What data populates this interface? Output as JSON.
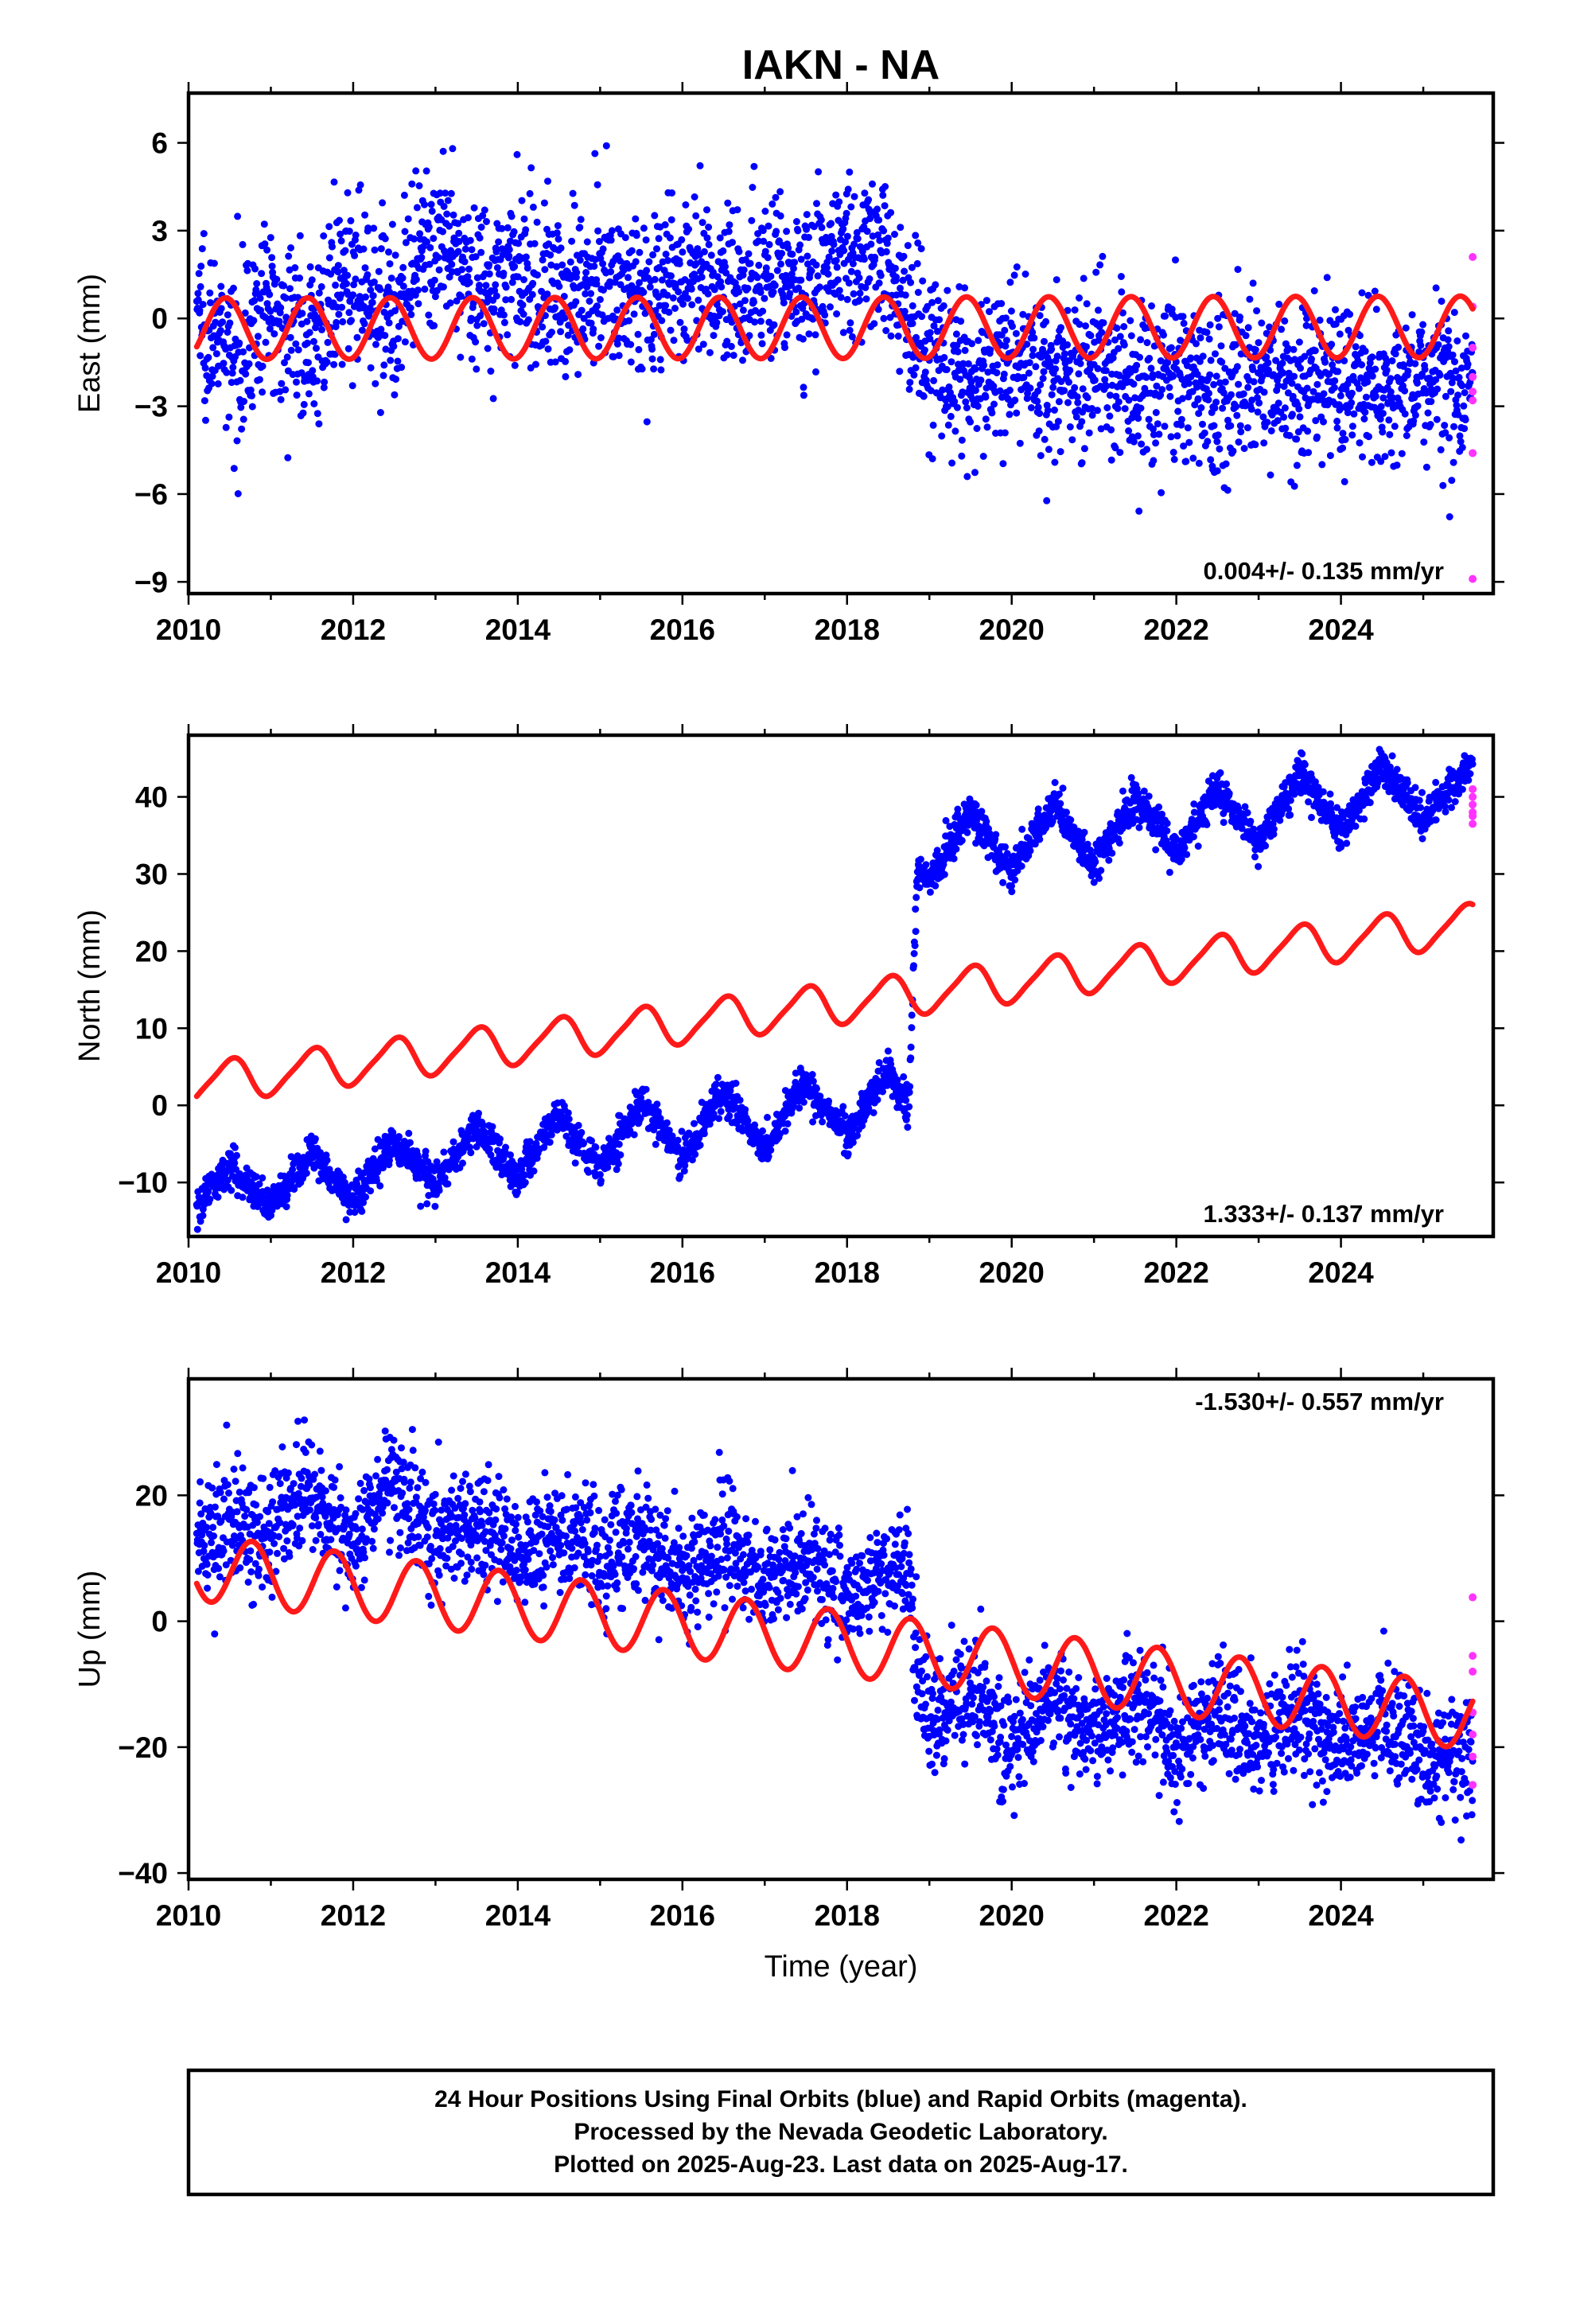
{
  "colors": {
    "final_orbits": "#0000ff",
    "rapid_orbits": "#ff33ff",
    "model_fit": "#ff1a1a"
  },
  "chart_data": [
    {
      "type": "scatter",
      "title": "IAKN - NA",
      "ylabel": "East (mm)",
      "xlabel": "",
      "xlim": [
        2010.0,
        2025.85
      ],
      "ylim": [
        -9.4,
        7.7
      ],
      "xticks": [
        "2010",
        "2012",
        "2014",
        "2016",
        "2018",
        "2020",
        "2022",
        "2024"
      ],
      "yticks": [
        "6",
        "3",
        "0",
        "−3",
        "−6",
        "−9"
      ],
      "annotation": "0.004+/- 0.135 mm/yr",
      "series": [
        {
          "name": "Final Orbits",
          "kind": "scatter-band",
          "x": [
            2010.1,
            2010.5,
            2011.0,
            2011.5,
            2012.0,
            2012.5,
            2013.0,
            2013.5,
            2014.0,
            2014.5,
            2015.0,
            2015.5,
            2016.0,
            2016.5,
            2017.0,
            2017.5,
            2018.0,
            2018.5,
            2018.8,
            2019.0,
            2019.5,
            2020.0,
            2020.5,
            2021.0,
            2021.5,
            2022.0,
            2022.5,
            2023.0,
            2023.5,
            2024.0,
            2024.5,
            2025.0,
            2025.6
          ],
          "y": [
            0.6,
            -1.5,
            0.5,
            -0.8,
            1.6,
            0.2,
            2.6,
            1.2,
            1.5,
            0.8,
            1.6,
            0.7,
            1.3,
            0.9,
            1.6,
            1.2,
            2.5,
            1.8,
            0.0,
            -1.2,
            -2.4,
            -1.3,
            -2.2,
            -1.3,
            -2.4,
            -1.6,
            -2.8,
            -2.0,
            -2.6,
            -1.8,
            -2.8,
            -2.1,
            -2.6
          ],
          "spread": 1.4
        },
        {
          "name": "Rapid Orbits",
          "x": [
            2025.6,
            2025.6,
            2025.6,
            2025.6,
            2025.6,
            2025.6,
            2025.6,
            2025.6
          ],
          "y": [
            2.1,
            0.4,
            -1.0,
            -2.0,
            -2.5,
            -2.8,
            -4.6,
            -8.9
          ]
        },
        {
          "name": "Model",
          "kind": "fit",
          "offset_before": -0.35,
          "offset_after": -0.35,
          "break": 2018.75,
          "rate": 0.004,
          "annual_amp": 1.05,
          "annual_phase": 0.2,
          "semiannual_amp": 0.0,
          "semiannual_phase": 0.0
        }
      ]
    },
    {
      "type": "scatter",
      "title": "",
      "ylabel": "North (mm)",
      "xlabel": "",
      "xlim": [
        2010.0,
        2025.85
      ],
      "ylim": [
        -17.0,
        48.0
      ],
      "xticks": [
        "2010",
        "2012",
        "2014",
        "2016",
        "2018",
        "2020",
        "2022",
        "2024"
      ],
      "yticks": [
        "40",
        "30",
        "20",
        "10",
        "0",
        "−10"
      ],
      "annotation": "1.333+/- 0.137 mm/yr",
      "series": [
        {
          "name": "Final Orbits",
          "kind": "scatter-band",
          "x": [
            2010.1,
            2010.5,
            2011.0,
            2011.5,
            2012.0,
            2012.5,
            2013.0,
            2013.5,
            2014.0,
            2014.5,
            2015.0,
            2015.5,
            2016.0,
            2016.5,
            2017.0,
            2017.5,
            2018.0,
            2018.5,
            2018.75,
            2018.85,
            2019.0,
            2019.5,
            2020.0,
            2020.5,
            2021.0,
            2021.5,
            2022.0,
            2022.5,
            2023.0,
            2023.5,
            2024.0,
            2024.5,
            2025.0,
            2025.6
          ],
          "y": [
            -13.0,
            -7.5,
            -13.0,
            -6.0,
            -12.5,
            -4.5,
            -10.5,
            -2.5,
            -9.5,
            -1.0,
            -8.5,
            0.5,
            -7.0,
            2.0,
            -5.5,
            3.0,
            -4.0,
            4.5,
            0.0,
            30.0,
            29.5,
            38.0,
            30.5,
            39.0,
            31.0,
            40.0,
            32.5,
            41.5,
            34.0,
            43.0,
            35.5,
            44.0,
            37.0,
            44.5
          ],
          "spread": 1.2
        },
        {
          "name": "Rapid Orbits",
          "x": [
            2025.6,
            2025.6,
            2025.6,
            2025.6,
            2025.6,
            2025.6
          ],
          "y": [
            41.0,
            40.0,
            39.0,
            38.0,
            37.5,
            36.5
          ]
        },
        {
          "name": "Model",
          "kind": "fit",
          "offset_before": 2.8,
          "offset_after": 2.8,
          "break": 2018.75,
          "rate": 1.333,
          "annual_amp": 2.6,
          "annual_phase": 0.25,
          "semiannual_amp": 0.5,
          "semiannual_phase": 0.0
        }
      ]
    },
    {
      "type": "scatter",
      "title": "",
      "ylabel": "Up (mm)",
      "xlabel": "Time (year)",
      "xlim": [
        2010.0,
        2025.85
      ],
      "ylim": [
        -41.0,
        38.5
      ],
      "xticks": [
        "2010",
        "2012",
        "2014",
        "2016",
        "2018",
        "2020",
        "2022",
        "2024"
      ],
      "yticks": [
        "20",
        "0",
        "−20",
        "−40"
      ],
      "annotation": "-1.530+/- 0.557 mm/yr",
      "series": [
        {
          "name": "Final Orbits",
          "kind": "scatter-band",
          "x": [
            2010.1,
            2010.5,
            2011.0,
            2011.5,
            2012.0,
            2012.5,
            2013.0,
            2013.5,
            2014.0,
            2014.5,
            2015.0,
            2015.5,
            2016.0,
            2016.5,
            2017.0,
            2017.5,
            2018.0,
            2018.5,
            2018.75,
            2018.85,
            2019.0,
            2019.5,
            2020.0,
            2020.5,
            2021.0,
            2021.5,
            2022.0,
            2022.5,
            2023.0,
            2023.5,
            2024.0,
            2024.5,
            2025.0,
            2025.6
          ],
          "y": [
            12.0,
            16.0,
            14.0,
            20.0,
            12.0,
            22.0,
            14.0,
            16.0,
            10.0,
            15.0,
            9.0,
            14.0,
            7.0,
            12.0,
            6.0,
            10.0,
            3.0,
            9.0,
            10.0,
            -10.0,
            -16.0,
            -10.0,
            -20.0,
            -12.0,
            -18.0,
            -12.0,
            -20.0,
            -14.0,
            -20.0,
            -14.0,
            -20.0,
            -15.0,
            -22.0,
            -21.0
          ],
          "spread": 4.5
        },
        {
          "name": "Rapid Orbits",
          "x": [
            2025.6,
            2025.6,
            2025.6,
            2025.6,
            2025.6,
            2025.6,
            2025.6
          ],
          "y": [
            3.8,
            -5.5,
            -8.0,
            -14.5,
            -18.0,
            -21.5,
            -26.0
          ]
        },
        {
          "name": "Model",
          "kind": "fit",
          "offset_before": 8.5,
          "offset_after": 8.5,
          "break": 2018.75,
          "rate": -1.53,
          "annual_amp": 5.2,
          "annual_phase": 0.52,
          "semiannual_amp": 0.0,
          "semiannual_phase": 0.0
        }
      ]
    }
  ],
  "info_box": {
    "line1": "24 Hour Positions Using Final Orbits (blue) and Rapid Orbits (magenta).",
    "line2": "Processed by the Nevada Geodetic Laboratory.",
    "line3": "Plotted on 2025-Aug-23. Last data on 2025-Aug-17."
  }
}
